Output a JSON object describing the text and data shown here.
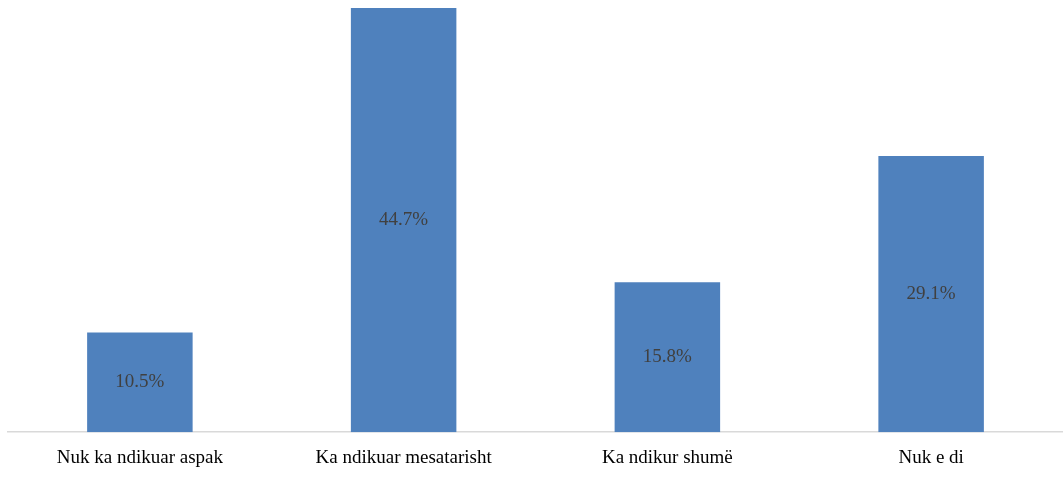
{
  "chart_data": {
    "type": "bar",
    "categories": [
      "Nuk ka ndikuar aspak",
      "Ka ndikuar mesatarisht",
      "Ka ndikur shumë",
      "Nuk e di"
    ],
    "values": [
      10.5,
      44.7,
      15.8,
      29.1
    ],
    "color": "#4f81bd",
    "value_labels": [
      "10.5%",
      "44.7%",
      "15.8%",
      "29.1%"
    ],
    "legend": false
  }
}
